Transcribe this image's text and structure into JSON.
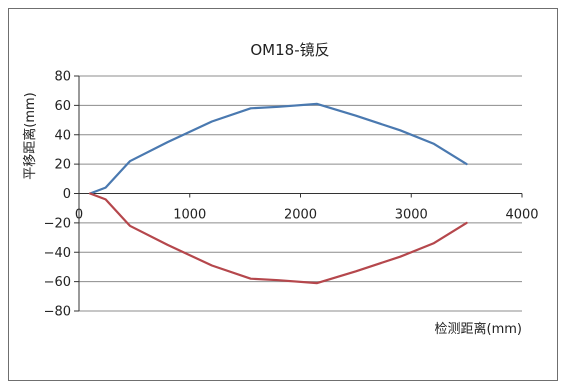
{
  "chart_data": {
    "type": "line",
    "title": "OM18-镜反",
    "xlabel": "检测距离(mm)",
    "ylabel": "平移距离(mm)",
    "xlim": [
      0,
      4000
    ],
    "ylim": [
      -80,
      80
    ],
    "xticks": [
      1000,
      2000,
      3000,
      4000
    ],
    "xtick_labels": [
      "1000",
      "2000",
      "3000",
      "4000"
    ],
    "xtick_zero_label": "0",
    "yticks": [
      80,
      60,
      40,
      20,
      0,
      -20,
      -40,
      -60,
      -80
    ],
    "ytick_labels": [
      "80",
      "60",
      "40",
      "20",
      "0",
      "−20",
      "−40",
      "−60",
      "−80"
    ],
    "grid": true,
    "legend": "none",
    "series": [
      {
        "color": "#4a79b0",
        "x": [
          100,
          240,
          460,
          800,
          1200,
          1550,
          1800,
          2150,
          2500,
          2900,
          3200,
          3500
        ],
        "y": [
          0,
          4,
          22,
          35,
          49,
          58,
          59,
          61,
          53,
          43,
          34,
          20
        ]
      },
      {
        "color": "#b5474c",
        "x": [
          100,
          240,
          460,
          800,
          1200,
          1550,
          1800,
          2150,
          2500,
          2900,
          3200,
          3500
        ],
        "y": [
          0,
          -4,
          -22,
          -35,
          -49,
          -58,
          -59,
          -61,
          -53,
          -43,
          -34,
          -20
        ]
      }
    ]
  }
}
